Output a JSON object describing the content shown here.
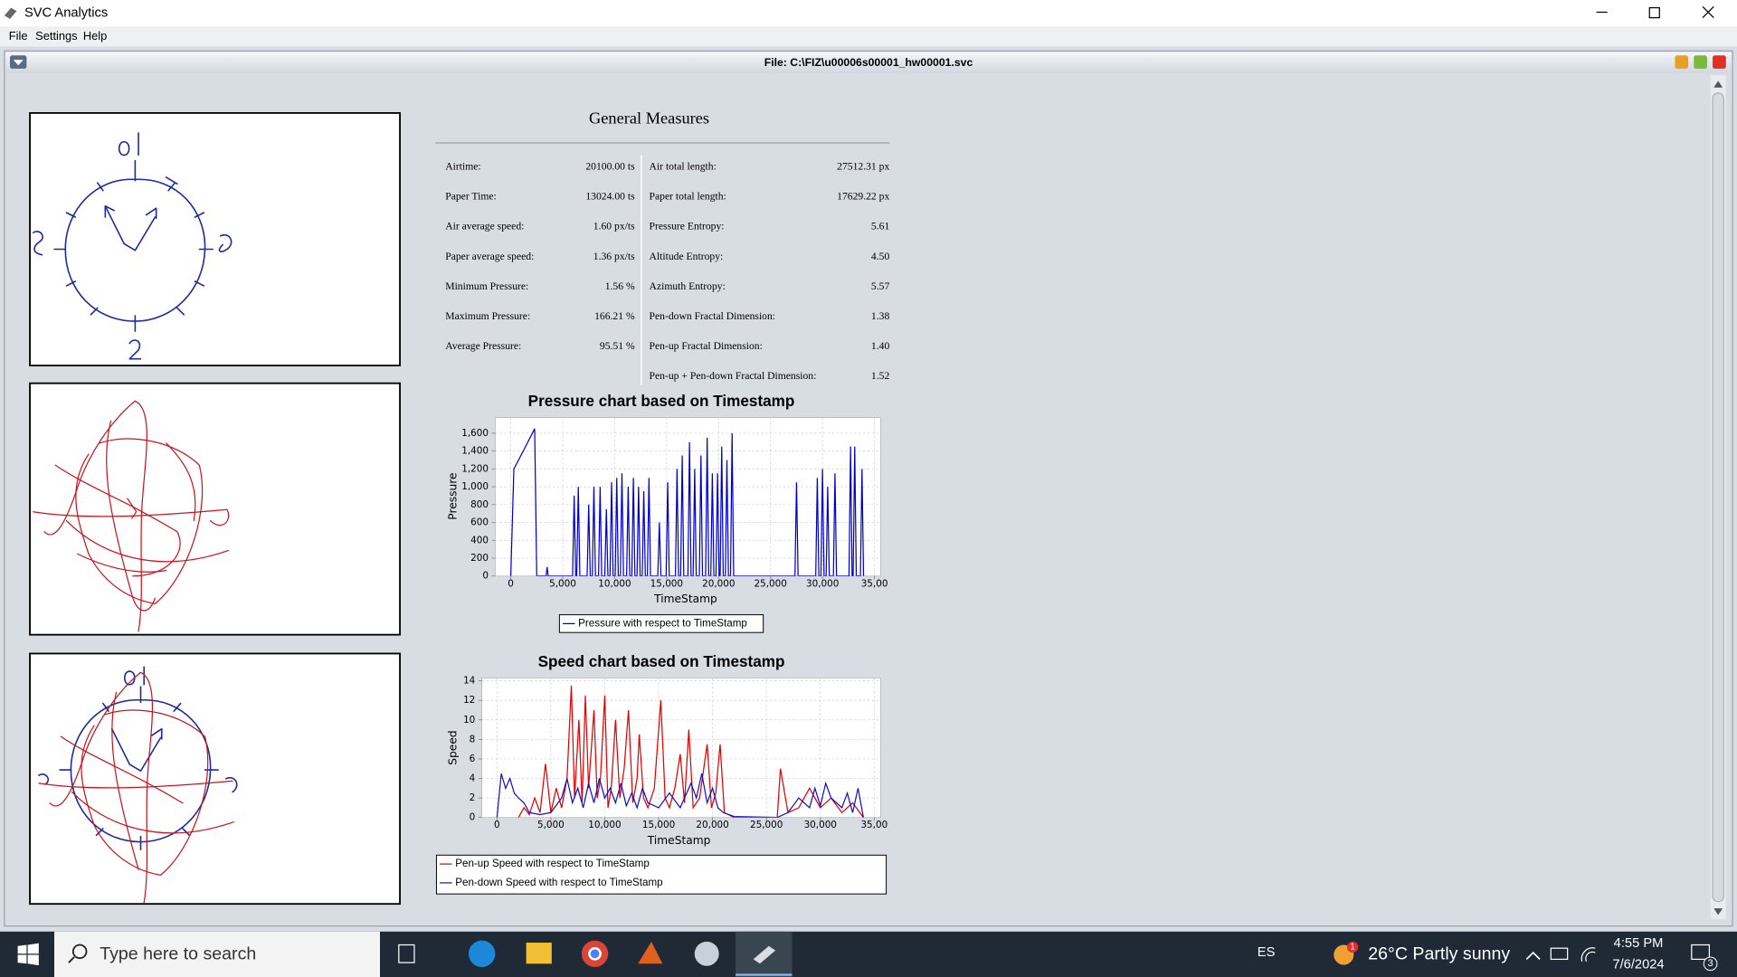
{
  "window": {
    "title": "SVC Analytics",
    "menu": [
      "File",
      "Settings",
      "Help"
    ]
  },
  "frame": {
    "title": "File: C:\\FIZ\\u00006s00001_hw00001.svc"
  },
  "measures": {
    "title": "General Measures",
    "left": [
      [
        "Airtime:",
        "20100.00 ts"
      ],
      [
        "Paper Time:",
        "13024.00 ts"
      ],
      [
        "Air average speed:",
        "1.60 px/ts"
      ],
      [
        "Paper average speed:",
        "1.36 px/ts"
      ],
      [
        "Minimum Pressure:",
        "1.56 %"
      ],
      [
        "Maximum Pressure:",
        "166.21 %"
      ],
      [
        "Average Pressure:",
        "95.51 %"
      ]
    ],
    "right": [
      [
        "Air total length:",
        "27512.31 px"
      ],
      [
        "Paper total length:",
        "17629.22 px"
      ],
      [
        "Pressure Entropy:",
        "5.61"
      ],
      [
        "Altitude Entropy:",
        "4.50"
      ],
      [
        "Azimuth Entropy:",
        "5.57"
      ],
      [
        "Pen-down Fractal Dimension:",
        "1.38"
      ],
      [
        "Pen-up Fractal Dimension:",
        "1.40"
      ],
      [
        "Pen-up + Pen-down Fractal Dimension:",
        "1.52"
      ]
    ]
  },
  "chart_data": [
    {
      "type": "line",
      "title": "Pressure chart based on Timestamp",
      "x_label": "TimeStamp",
      "y_label": "Pressure",
      "grid": true,
      "xlim": [
        -1500,
        35600
      ],
      "ylim": [
        0,
        1775
      ],
      "xticks": [
        0,
        {
          "value": 5000,
          "label": "5,000"
        },
        {
          "value": 10000,
          "label": "10,000"
        },
        {
          "value": 15000,
          "label": "15,000"
        },
        {
          "value": 20000,
          "label": "20,000"
        },
        {
          "value": 25000,
          "label": "25,000"
        },
        {
          "value": 30000,
          "label": "30,000"
        },
        {
          "value": 35000,
          "label": "35,00"
        }
      ],
      "yticks": [
        0,
        200,
        400,
        600,
        800,
        {
          "value": 1000,
          "label": "1,000"
        },
        {
          "value": 1200,
          "label": "1,200"
        },
        {
          "value": 1400,
          "label": "1,400"
        },
        {
          "value": 1600,
          "label": "1,600"
        }
      ],
      "series": [
        {
          "name": "Pressure with respect to TimeStamp",
          "color": "#0000cc",
          "x": [
            0,
            300,
            1200,
            2300,
            2500,
            3400,
            3500,
            3600,
            5950,
            6100,
            6250,
            6350,
            6500,
            6650,
            7350,
            7500,
            7650,
            7850,
            8000,
            8150,
            8450,
            8600,
            8750,
            9050,
            9200,
            9350,
            9550,
            9700,
            9850,
            10050,
            10200,
            10350,
            10550,
            10700,
            10850,
            11150,
            11300,
            11450,
            11650,
            11800,
            11950,
            12150,
            12300,
            12450,
            12650,
            12800,
            12950,
            13150,
            13300,
            13450,
            14150,
            14300,
            14450,
            14950,
            15100,
            15250,
            15850,
            16000,
            16150,
            16350,
            16500,
            16650,
            17050,
            17200,
            17350,
            17550,
            17700,
            17850,
            18150,
            18300,
            18450,
            18750,
            18900,
            19050,
            19250,
            19400,
            19550,
            19750,
            19900,
            20050,
            20150,
            20300,
            20450,
            20650,
            20800,
            20950,
            21150,
            21300,
            21450,
            27350,
            27500,
            27650,
            29350,
            29500,
            29650,
            29850,
            30000,
            30150,
            30350,
            30500,
            30650,
            31050,
            31200,
            31350,
            32550,
            32700,
            32850,
            32950,
            33100,
            33250,
            33650,
            33800,
            33950
          ],
          "values": [
            0,
            1200,
            1400,
            1650,
            0,
            0,
            100,
            0,
            0,
            900,
            0,
            0,
            1000,
            0,
            0,
            800,
            0,
            0,
            1000,
            0,
            0,
            1000,
            0,
            0,
            750,
            0,
            0,
            1050,
            0,
            0,
            1100,
            0,
            0,
            1150,
            0,
            0,
            1000,
            0,
            0,
            1100,
            0,
            0,
            1000,
            0,
            0,
            950,
            0,
            0,
            1100,
            0,
            0,
            600,
            0,
            0,
            1050,
            0,
            0,
            1200,
            0,
            0,
            1350,
            0,
            0,
            1500,
            0,
            0,
            1200,
            0,
            0,
            1350,
            0,
            0,
            1550,
            0,
            0,
            1150,
            0,
            0,
            1150,
            0,
            0,
            1450,
            0,
            0,
            1300,
            0,
            0,
            1600,
            0,
            0,
            1050,
            0,
            0,
            1100,
            0,
            0,
            1200,
            0,
            0,
            1000,
            0,
            0,
            1150,
            0,
            0,
            1450,
            0,
            0,
            1450,
            0,
            0,
            1200,
            0
          ]
        }
      ]
    },
    {
      "type": "line",
      "title": "Speed chart based on Timestamp",
      "x_label": "TimeStamp",
      "y_label": "Speed",
      "grid": true,
      "xlim": [
        -1400,
        35600
      ],
      "ylim": [
        0,
        14.3
      ],
      "xticks": [
        0,
        {
          "value": 5000,
          "label": "5,000"
        },
        {
          "value": 10000,
          "label": "10,000"
        },
        {
          "value": 15000,
          "label": "15,000"
        },
        {
          "value": 20000,
          "label": "20,000"
        },
        {
          "value": 25000,
          "label": "25,000"
        },
        {
          "value": 30000,
          "label": "30,000"
        },
        {
          "value": 35000,
          "label": "35,00"
        }
      ],
      "yticks": [
        0,
        2,
        4,
        6,
        8,
        10,
        12,
        14
      ],
      "series": [
        {
          "name": "Pen-up Speed with respect to TimeStamp",
          "color": "#e00000",
          "x": [
            2000,
            2500,
            3000,
            3500,
            4000,
            4500,
            5000,
            5500,
            6000,
            6500,
            6900,
            7200,
            7600,
            7900,
            8200,
            8500,
            9000,
            9300,
            9600,
            10000,
            10300,
            10600,
            11000,
            11400,
            11800,
            12200,
            12600,
            13000,
            13200,
            13600,
            14000,
            14600,
            15200,
            15600,
            16000,
            16500,
            17000,
            17400,
            17800,
            18200,
            18800,
            19500,
            19900,
            20300,
            20700,
            21100,
            22000,
            26000,
            26300,
            27000,
            28000,
            29000,
            30000,
            31000,
            32000,
            33000,
            34000
          ],
          "values": [
            0,
            1,
            0.3,
            2,
            0.5,
            5.5,
            0.5,
            3,
            1,
            4,
            13.5,
            2,
            10,
            1.5,
            12.5,
            3,
            11,
            2,
            4,
            12.5,
            1,
            3,
            10,
            2,
            5,
            11,
            1.5,
            4,
            8.5,
            2,
            1,
            3,
            12,
            2,
            1,
            3,
            6.5,
            1.5,
            9,
            1,
            2,
            7.5,
            1,
            2.5,
            7.5,
            0.5,
            0,
            0,
            5,
            0.5,
            1,
            3,
            1,
            2,
            0.5,
            1.5,
            0
          ]
        },
        {
          "name": "Pen-down Speed with respect to TimeStamp",
          "color": "#1010cc",
          "x": [
            0,
            400,
            800,
            1200,
            1600,
            2000,
            2500,
            3000,
            4000,
            5000,
            6000,
            6500,
            7000,
            7500,
            8000,
            8500,
            9000,
            9500,
            10000,
            10500,
            11000,
            11500,
            12000,
            12500,
            13000,
            13500,
            14000,
            15000,
            16000,
            17000,
            18000,
            18500,
            19000,
            19500,
            20000,
            20500,
            21000,
            22000,
            26000,
            27000,
            28000,
            29000,
            29500,
            30000,
            30500,
            31000,
            31500,
            32000,
            32500,
            33000,
            33500,
            34000
          ],
          "values": [
            0,
            4.5,
            3,
            4,
            2.5,
            2,
            1.5,
            0.5,
            0.3,
            0.5,
            2,
            4,
            1.5,
            3,
            1,
            3.5,
            1.5,
            4,
            2,
            3,
            1.5,
            3.5,
            1.2,
            2.5,
            1,
            3,
            1.5,
            1,
            2.5,
            1,
            3.5,
            2,
            4.5,
            1.5,
            3,
            1,
            0.5,
            0.1,
            0,
            0.5,
            2,
            1,
            3,
            1.2,
            3.5,
            2,
            1.5,
            1,
            2.5,
            0.5,
            3,
            0
          ]
        }
      ]
    }
  ],
  "taskbar": {
    "search": "Type here to search",
    "language": "ES",
    "weather": "26°C Partly sunny",
    "weather_badge": "1",
    "time": "4:55 PM",
    "date": "7/6/2024",
    "notifications": "3"
  }
}
